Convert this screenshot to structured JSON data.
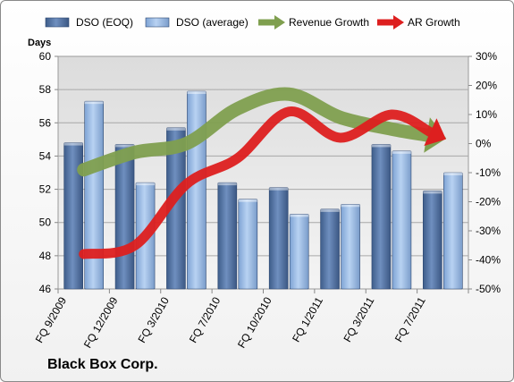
{
  "company": "Black Box Corp.",
  "chart_data": {
    "type": "bar",
    "title": "",
    "ylabel": "Days",
    "y2label": "",
    "ylim": [
      46,
      60
    ],
    "yticks": [
      46,
      48,
      50,
      52,
      54,
      56,
      58,
      60
    ],
    "y2lim": [
      -50,
      30
    ],
    "y2ticks": [
      -50,
      -40,
      -30,
      -20,
      -10,
      0,
      10,
      20,
      30
    ],
    "y2tick_suffix": "%",
    "categories": [
      "FQ 9/2009",
      "FQ 12/2009",
      "FQ 3/2010",
      "FQ 7/2010",
      "FQ 10/2010",
      "FQ 1/2011",
      "FQ 3/2011",
      "FQ 7/2011"
    ],
    "series": [
      {
        "name": "DSO (EOQ)",
        "kind": "bar",
        "axis": "left",
        "color": "#4f6f9f",
        "values": [
          54.8,
          54.7,
          55.7,
          52.4,
          52.1,
          50.8,
          54.7,
          51.9
        ]
      },
      {
        "name": "DSO (average)",
        "kind": "bar",
        "axis": "left",
        "color": "#8fb4e3",
        "values": [
          57.3,
          52.4,
          57.9,
          51.4,
          50.5,
          51.1,
          54.3,
          53.0
        ]
      },
      {
        "name": "Revenue Growth",
        "kind": "arrow-line",
        "axis": "right",
        "color": "#7f9f4f",
        "values": [
          -9,
          -3,
          0,
          12,
          17,
          9,
          5,
          2
        ]
      },
      {
        "name": "AR Growth",
        "kind": "arrow-line",
        "axis": "right",
        "color": "#dd1f1f",
        "values": [
          -38,
          -35,
          -14,
          -5,
          11,
          2,
          10,
          2
        ]
      }
    ],
    "grid": true,
    "legend": "top"
  }
}
